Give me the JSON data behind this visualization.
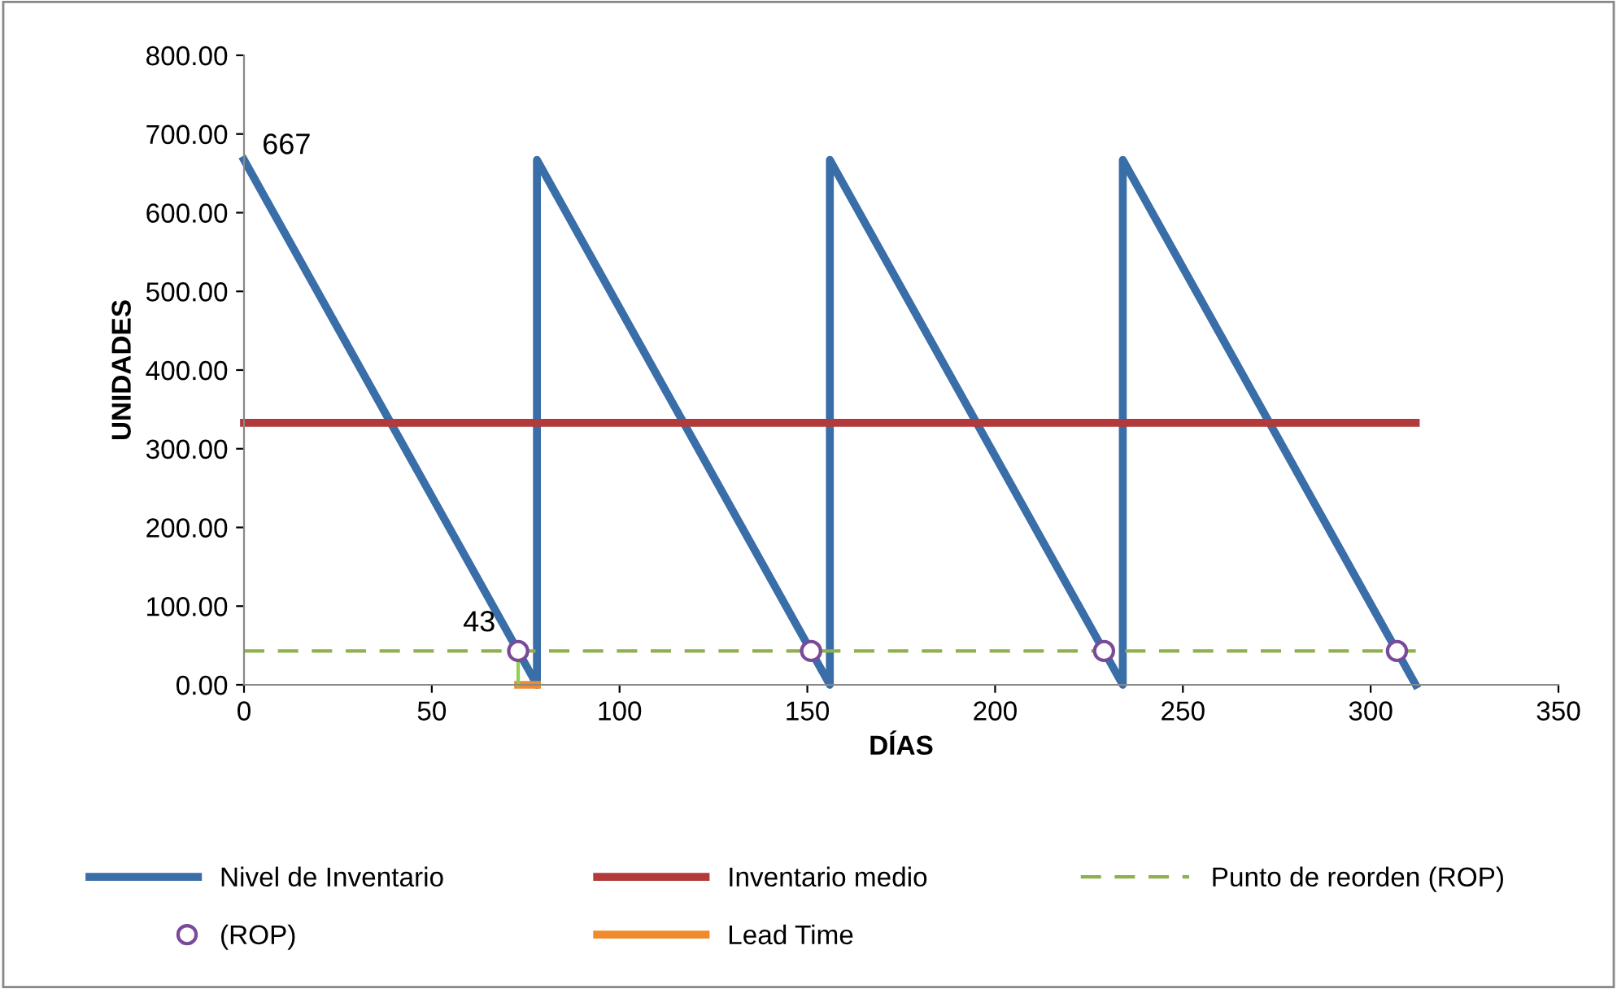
{
  "chart_data": {
    "type": "line",
    "xlabel": "DÍAS",
    "ylabel": "UNIDADES",
    "xlim": [
      0,
      350
    ],
    "xticks": [
      0,
      50,
      100,
      150,
      200,
      250,
      300,
      350
    ],
    "ylim": [
      0,
      800
    ],
    "yticks": [
      {
        "value": 0,
        "label": "0.00"
      },
      {
        "value": 100,
        "label": "100.00"
      },
      {
        "value": 200,
        "label": "200.00"
      },
      {
        "value": 300,
        "label": "300.00"
      },
      {
        "value": 400,
        "label": "400.00"
      },
      {
        "value": 500,
        "label": "500.00"
      },
      {
        "value": 600,
        "label": "600.00"
      },
      {
        "value": 700,
        "label": "700.00"
      },
      {
        "value": 800,
        "label": "800.00"
      }
    ],
    "grid": false,
    "legend": "bottom",
    "marker": "none",
    "series": [
      {
        "name": "Nivel de Inventario",
        "color": "#3a6ea8",
        "x": [
          0,
          78,
          78,
          156,
          156,
          234,
          234,
          312
        ],
        "values": [
          667,
          0,
          667,
          0,
          667,
          0,
          667,
          0
        ],
        "line_style": "solid"
      },
      {
        "name": "Inventario medio",
        "color": "#b23a3a",
        "x": [
          0,
          312
        ],
        "values": [
          333,
          333
        ],
        "line_style": "solid"
      },
      {
        "name": "Punto de reorden (ROP)",
        "color": "#8fb04e",
        "x": [
          0,
          312
        ],
        "values": [
          43,
          43
        ],
        "line_style": "dashed"
      },
      {
        "name": "(ROP)",
        "type": "scatter",
        "color": "#7a4a9a",
        "x": [
          73,
          151,
          229,
          307
        ],
        "values": [
          43,
          43,
          43,
          43
        ],
        "marker": "circle"
      },
      {
        "name": "Lead Time",
        "color": "#f08a2c",
        "x": [
          73,
          78
        ],
        "values": [
          0,
          0
        ],
        "line_style": "solid"
      },
      {
        "color": "#8fd04e",
        "x": [
          73,
          73
        ],
        "values": [
          0,
          43
        ],
        "line_style": "solid"
      }
    ],
    "annotations": [
      {
        "text": "667",
        "x": 0,
        "y": 667
      },
      {
        "text": "43",
        "x": 73,
        "y": 43
      }
    ]
  }
}
